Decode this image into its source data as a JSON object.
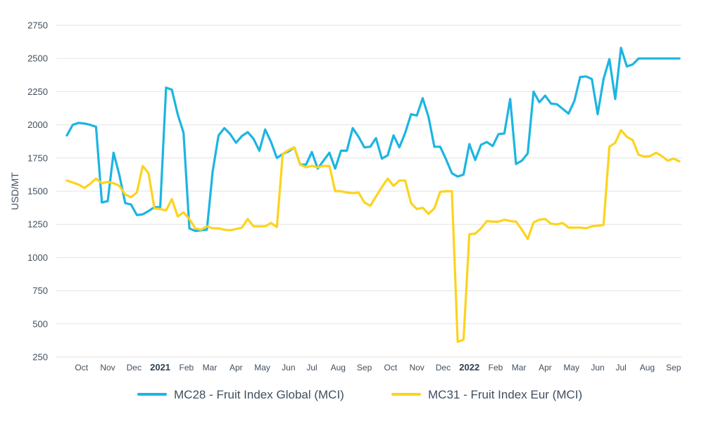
{
  "chart_data": {
    "type": "line",
    "ylabel": "USD/MT",
    "ylim": [
      250,
      2750
    ],
    "yticks": [
      250,
      500,
      750,
      1000,
      1250,
      1500,
      1750,
      2000,
      2250,
      2500,
      2750
    ],
    "x_ticks": [
      {
        "label": "Oct",
        "week": 2.5
      },
      {
        "label": "Nov",
        "week": 7
      },
      {
        "label": "Dec",
        "week": 11.5
      },
      {
        "label": "2021",
        "week": 16,
        "bold": true
      },
      {
        "label": "Feb",
        "week": 20.5
      },
      {
        "label": "Mar",
        "week": 24.5
      },
      {
        "label": "Apr",
        "week": 29
      },
      {
        "label": "May",
        "week": 33.5
      },
      {
        "label": "Jun",
        "week": 38
      },
      {
        "label": "Jul",
        "week": 42
      },
      {
        "label": "Aug",
        "week": 46.5
      },
      {
        "label": "Sep",
        "week": 51
      },
      {
        "label": "Oct",
        "week": 55.5
      },
      {
        "label": "Nov",
        "week": 60
      },
      {
        "label": "Dec",
        "week": 64.5
      },
      {
        "label": "2022",
        "week": 69,
        "bold": true
      },
      {
        "label": "Feb",
        "week": 73.5
      },
      {
        "label": "Mar",
        "week": 77.5
      },
      {
        "label": "Apr",
        "week": 82
      },
      {
        "label": "May",
        "week": 86.5
      },
      {
        "label": "Jun",
        "week": 91
      },
      {
        "label": "Jul",
        "week": 95
      },
      {
        "label": "Aug",
        "week": 99.5
      },
      {
        "label": "Sep",
        "week": 104
      }
    ],
    "series": [
      {
        "name": "MC28 - Fruit Index Global (MCI)",
        "color": "#1cb5e2",
        "values": [
          1920,
          2000,
          2015,
          2010,
          2000,
          1985,
          1415,
          1425,
          1790,
          1620,
          1410,
          1400,
          1320,
          1325,
          1350,
          1380,
          1380,
          2280,
          2265,
          2080,
          1940,
          1220,
          1200,
          1205,
          1210,
          1650,
          1920,
          1975,
          1930,
          1865,
          1915,
          1945,
          1895,
          1805,
          1965,
          1870,
          1750,
          1780,
          1800,
          1830,
          1700,
          1700,
          1795,
          1670,
          1730,
          1790,
          1670,
          1805,
          1805,
          1975,
          1910,
          1830,
          1835,
          1900,
          1745,
          1770,
          1920,
          1830,
          1940,
          2080,
          2070,
          2200,
          2060,
          1835,
          1835,
          1740,
          1635,
          1610,
          1625,
          1855,
          1735,
          1850,
          1870,
          1840,
          1930,
          1935,
          2195,
          1705,
          1730,
          1785,
          2250,
          2170,
          2220,
          2160,
          2155,
          2120,
          2085,
          2180,
          2360,
          2365,
          2345,
          2080,
          2345,
          2495,
          2195,
          2580,
          2440,
          2455,
          2500,
          2500,
          2500,
          2500,
          2500,
          2500,
          2500,
          2500
        ]
      },
      {
        "name": "MC31 - Fruit Index Eur (MCI)",
        "color": "#fdd31d",
        "values": [
          1580,
          1565,
          1550,
          1525,
          1555,
          1595,
          1560,
          1570,
          1560,
          1540,
          1475,
          1455,
          1490,
          1690,
          1635,
          1370,
          1365,
          1355,
          1440,
          1310,
          1340,
          1290,
          1220,
          1210,
          1235,
          1220,
          1220,
          1210,
          1205,
          1215,
          1225,
          1290,
          1235,
          1235,
          1235,
          1260,
          1230,
          1780,
          1810,
          1830,
          1700,
          1680,
          1690,
          1680,
          1690,
          1690,
          1500,
          1500,
          1490,
          1485,
          1490,
          1415,
          1390,
          1460,
          1530,
          1595,
          1540,
          1580,
          1580,
          1410,
          1365,
          1375,
          1330,
          1370,
          1495,
          1500,
          1500,
          365,
          380,
          1175,
          1180,
          1220,
          1275,
          1270,
          1270,
          1285,
          1275,
          1270,
          1210,
          1140,
          1265,
          1285,
          1290,
          1255,
          1250,
          1260,
          1225,
          1225,
          1225,
          1220,
          1235,
          1240,
          1245,
          1835,
          1865,
          1960,
          1910,
          1885,
          1775,
          1760,
          1765,
          1790,
          1765,
          1730,
          1745,
          1725
        ]
      }
    ],
    "legend_position": "bottom-center",
    "grid": true
  }
}
